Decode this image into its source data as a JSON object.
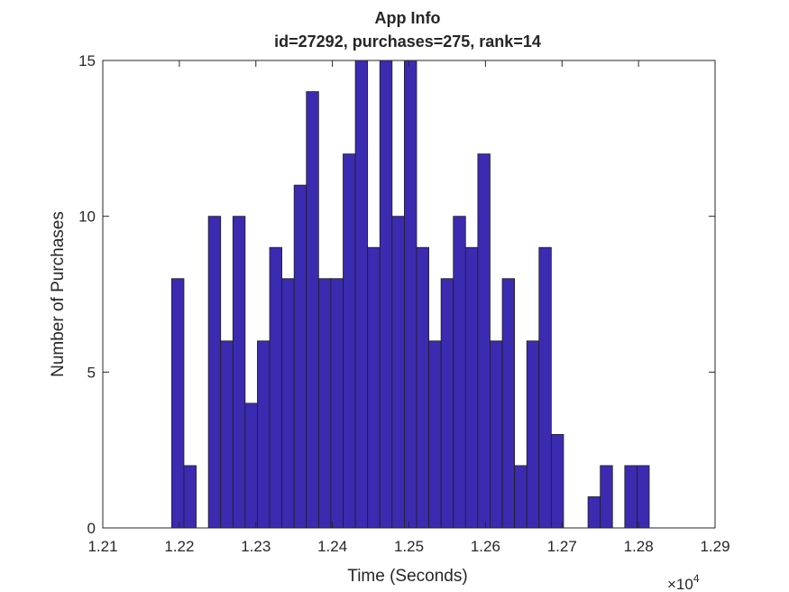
{
  "chart_data": {
    "type": "bar",
    "title": "App Info",
    "subtitle": "id=27292, purchases=275, rank=14",
    "xlabel": "Time (Seconds)",
    "ylabel": "Number of Purchases",
    "x_exponent_label": {
      "base": "×10",
      "power": "4"
    },
    "xlim": [
      12100,
      12900
    ],
    "ylim": [
      0,
      15
    ],
    "xticks": [
      12100,
      12200,
      12300,
      12400,
      12500,
      12600,
      12700,
      12800,
      12900
    ],
    "xtick_labels": [
      "1.21",
      "1.22",
      "1.23",
      "1.24",
      "1.25",
      "1.26",
      "1.27",
      "1.28",
      "1.29"
    ],
    "yticks": [
      0,
      5,
      10,
      15
    ],
    "ytick_labels": [
      "0",
      "5",
      "10",
      "15"
    ],
    "grid": false,
    "bin_edges_start": 12190,
    "bin_width": 16.0,
    "values": [
      8,
      2,
      0,
      10,
      6,
      10,
      4,
      6,
      9,
      8,
      11,
      14,
      8,
      8,
      12,
      15,
      9,
      15,
      10,
      15,
      9,
      6,
      8,
      10,
      9,
      12,
      6,
      8,
      2,
      6,
      9,
      3,
      0,
      0,
      1,
      2,
      0,
      2,
      2
    ],
    "colors": {
      "bar_fill": "#3b2bb0",
      "bar_edge": "#1e1e1e",
      "axis": "#262626"
    }
  }
}
